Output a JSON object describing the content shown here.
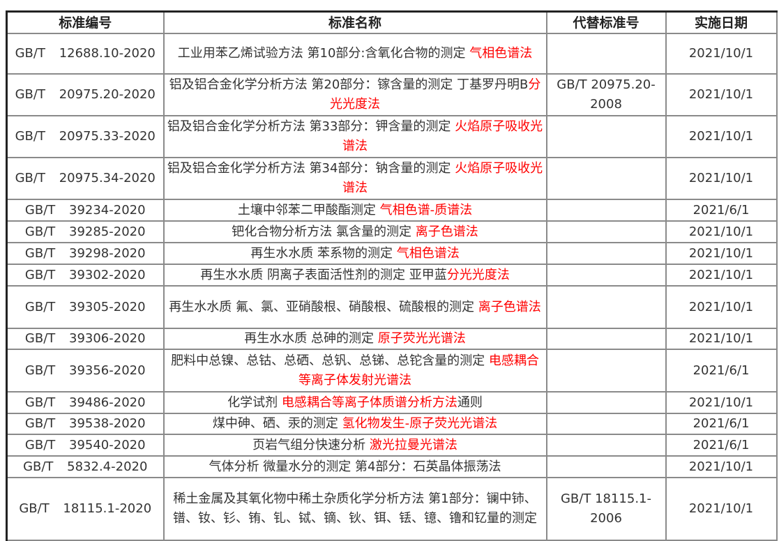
{
  "headers": [
    "标准编号",
    "标准名称",
    "代替标准号",
    "实施日期"
  ],
  "colors": {
    "highlight": "#ff0000",
    "text": "#333333",
    "border": "#8a8a8a"
  },
  "rows": [
    {
      "code": "GB/T 12688.10-2020",
      "name": "工业用苯乙烯试验方法 第10部分:含氧化合物的测定 ",
      "method": "气相色谱法",
      "suffix": "",
      "replaces": "",
      "date": "2021/10/1"
    },
    {
      "code": "GB/T 20975.20-2020",
      "name": "铝及铝合金化学分析方法 第20部分：镓含量的测定 丁基罗丹明B",
      "method": "分光光度法",
      "suffix": "",
      "replaces": "GB/T 20975.20-2008",
      "date": "2021/10/1"
    },
    {
      "code": "GB/T 20975.33-2020",
      "name": "铝及铝合金化学分析方法 第33部分：钾含量的测定 ",
      "method": "火焰原子吸收光谱法",
      "suffix": "",
      "replaces": "",
      "date": "2021/10/1"
    },
    {
      "code": "GB/T 20975.34-2020",
      "name": "铝及铝合金化学分析方法 第34部分：钠含量的测定 ",
      "method": "火焰原子吸收光谱法",
      "suffix": "",
      "replaces": "",
      "date": "2021/10/1"
    },
    {
      "code": "GB/T 39234-2020",
      "name": "土壤中邻苯二甲酸酯测定 ",
      "method": "气相色谱-质谱法",
      "suffix": "",
      "replaces": "",
      "date": "2021/6/1"
    },
    {
      "code": "GB/T 39285-2020",
      "name": "钯化合物分析方法 氯含量的测定 ",
      "method": "离子色谱法",
      "suffix": "",
      "replaces": "",
      "date": "2021/10/1"
    },
    {
      "code": "GB/T 39298-2020",
      "name": "再生水水质 苯系物的测定 ",
      "method": "气相色谱法",
      "suffix": "",
      "replaces": "",
      "date": "2021/10/1"
    },
    {
      "code": "GB/T 39302-2020",
      "name": "再生水水质 阴离子表面活性剂的测定 亚甲蓝",
      "method": "分光光度法",
      "suffix": "",
      "replaces": "",
      "date": "2021/10/1"
    },
    {
      "code": "GB/T 39305-2020",
      "name": "再生水水质 氟、氯、亚硝酸根、硝酸根、硫酸根的测定 ",
      "method": "离子色谱法",
      "suffix": "",
      "replaces": "",
      "date": "2021/10/1"
    },
    {
      "code": "GB/T 39306-2020",
      "name": "再生水水质 总砷的测定 ",
      "method": "原子荧光光谱法",
      "suffix": "",
      "replaces": "",
      "date": "2021/10/1"
    },
    {
      "code": "GB/T 39356-2020",
      "name": "肥料中总镍、总钴、总硒、总钒、总锑、总铊含量的测定 ",
      "method": "电感耦合等离子体发射光谱法",
      "suffix": "",
      "replaces": "",
      "date": "2021/6/1"
    },
    {
      "code": "GB/T 39486-2020",
      "name": "化学试剂 ",
      "method": "电感耦合等离子体质谱分析方法",
      "suffix": "通则",
      "replaces": "",
      "date": "2021/10/1"
    },
    {
      "code": "GB/T 39538-2020",
      "name": "煤中砷、硒、汞的测定 ",
      "method": "氢化物发生-原子荧光光谱法",
      "suffix": "",
      "replaces": "",
      "date": "2021/6/1"
    },
    {
      "code": "GB/T 39540-2020",
      "name": "页岩气组分快速分析 ",
      "method": "激光拉曼光谱法",
      "suffix": "",
      "replaces": "",
      "date": "2021/6/1"
    },
    {
      "code": "GB/T 5832.4-2020",
      "name": "气体分析 微量水分的测定 第4部分：石英晶体振荡法",
      "method": "",
      "suffix": "",
      "replaces": "",
      "date": "2021/10/1"
    },
    {
      "code": "GB/T 18115.1-2020",
      "name": "稀土金属及其氧化物中稀土杂质化学分析方法 第1部分：镧中铈、镨、钕、钐、铕、钆、铽、镝、钬、铒、铥、镱、镥和钇量的测定",
      "method": "",
      "suffix": "",
      "replaces": "GB/T 18115.1-2006",
      "date": "2021/10/1"
    }
  ]
}
